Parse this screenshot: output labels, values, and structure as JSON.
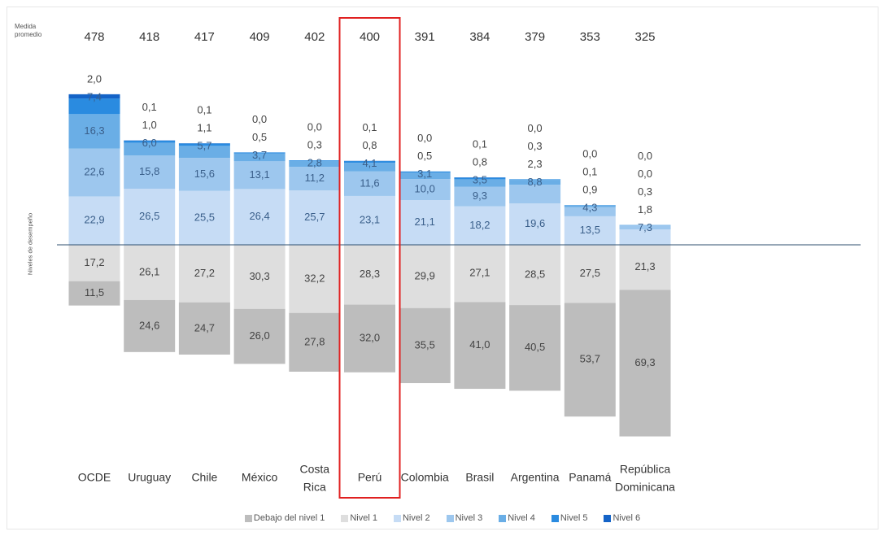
{
  "corner_label": "Medida\npromedio",
  "ylabel": "Niveles de desempeño",
  "chart_data": {
    "type": "bar",
    "stacking": "diverging",
    "categories": [
      "OCDE",
      "Uruguay",
      "Chile",
      "México",
      "Costa Rica",
      "Perú",
      "Colombia",
      "Brasil",
      "Argentina",
      "Panamá",
      "República Dominicana"
    ],
    "category_labels": [
      [
        "OCDE"
      ],
      [
        "Uruguay"
      ],
      [
        "Chile"
      ],
      [
        "México"
      ],
      [
        "Costa",
        "Rica"
      ],
      [
        "Perú"
      ],
      [
        "Colombia"
      ],
      [
        "Brasil"
      ],
      [
        "Argentina"
      ],
      [
        "Panamá"
      ],
      [
        "República",
        "Dominicana"
      ]
    ],
    "mean_scores": [
      "478",
      "418",
      "417",
      "409",
      "402",
      "400",
      "391",
      "384",
      "379",
      "353",
      "325"
    ],
    "highlighted": "Perú",
    "series": [
      {
        "name": "Debajo del nivel 1",
        "color": "#bdbdbd",
        "direction": "down",
        "values": [
          11.5,
          24.6,
          24.7,
          26.0,
          27.8,
          32.0,
          35.5,
          41.0,
          40.5,
          53.7,
          69.3
        ],
        "labels": [
          "11,5",
          "24,6",
          "24,7",
          "26,0",
          "27,8",
          "32,0",
          "35,5",
          "41,0",
          "40,5",
          "53,7",
          "69,3"
        ]
      },
      {
        "name": "Nivel 1",
        "color": "#dedede",
        "direction": "down",
        "values": [
          17.2,
          26.1,
          27.2,
          30.3,
          32.2,
          28.3,
          29.9,
          27.1,
          28.5,
          27.5,
          21.3
        ],
        "labels": [
          "17,2",
          "26,1",
          "27,2",
          "30,3",
          "32,2",
          "28,3",
          "29,9",
          "27,1",
          "28,5",
          "27,5",
          "21,3"
        ]
      },
      {
        "name": "Nivel 2",
        "color": "#c6dcf5",
        "direction": "up",
        "values": [
          22.9,
          26.5,
          25.5,
          26.4,
          25.7,
          23.1,
          21.1,
          18.2,
          19.6,
          13.5,
          7.3
        ],
        "labels": [
          "22,9",
          "26,5",
          "25,5",
          "26,4",
          "25,7",
          "23,1",
          "21,1",
          "18,2",
          "19,6",
          "13,5",
          "7,3"
        ]
      },
      {
        "name": "Nivel 3",
        "color": "#9dc7ee",
        "direction": "up",
        "values": [
          22.6,
          15.8,
          15.6,
          13.1,
          11.2,
          11.6,
          10.0,
          9.3,
          8.8,
          4.3,
          1.8
        ],
        "labels": [
          "22,6",
          "15,8",
          "15,6",
          "13,1",
          "11,2",
          "11,6",
          "10,0",
          "9,3",
          "8,8",
          "4,3",
          "1,8"
        ]
      },
      {
        "name": "Nivel 4",
        "color": "#6aaee6",
        "direction": "up",
        "values": [
          16.3,
          6.0,
          5.7,
          3.7,
          2.8,
          4.1,
          3.1,
          3.5,
          2.3,
          0.9,
          0.3
        ],
        "labels": [
          "16,3",
          "6,0",
          "5,7",
          "3,7",
          "2,8",
          "4,1",
          "3,1",
          "3,5",
          "2,3",
          "0,9",
          "0,3"
        ]
      },
      {
        "name": "Nivel 5",
        "color": "#2a8be0",
        "direction": "up",
        "values": [
          7.4,
          1.0,
          1.1,
          0.5,
          0.3,
          0.8,
          0.5,
          0.8,
          0.3,
          0.1,
          0.0
        ],
        "labels": [
          "7,4",
          "1,0",
          "1,1",
          "0,5",
          "0,3",
          "0,8",
          "0,5",
          "0,8",
          "0,3",
          "0,1",
          "0,0"
        ]
      },
      {
        "name": "Nivel 6",
        "color": "#1463c7",
        "direction": "up",
        "values": [
          2.0,
          0.1,
          0.1,
          0.0,
          0.0,
          0.1,
          0.0,
          0.1,
          0.0,
          0.0,
          0.0
        ],
        "labels": [
          "2,0",
          "0,1",
          "0,1",
          "0,0",
          "0,0",
          "0,1",
          "0,0",
          "0,1",
          "0,0",
          "0,0",
          "0,0"
        ]
      }
    ],
    "legend_position": "bottom",
    "grid": false,
    "colors": {
      "baseline": "#2f4f6f",
      "highlight": "#e02020",
      "text": "#444444",
      "inner_text": "#3a5f8a"
    }
  }
}
